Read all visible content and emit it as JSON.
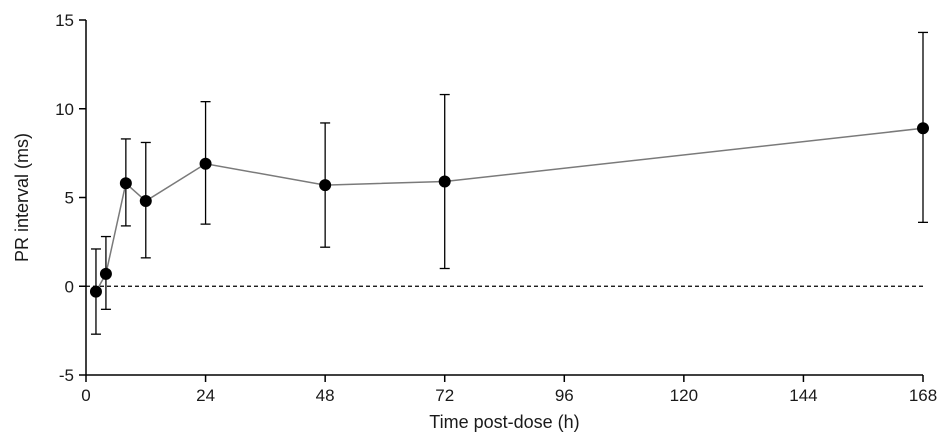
{
  "chart_data": {
    "type": "line",
    "xlabel": "Time post-dose (h)",
    "ylabel": "PR interval (ms)",
    "xlim": [
      0,
      168
    ],
    "ylim": [
      -5,
      15
    ],
    "x_ticks": [
      0,
      24,
      48,
      72,
      96,
      120,
      144,
      168
    ],
    "y_ticks": [
      -5,
      0,
      5,
      10,
      15
    ],
    "reference_line": {
      "y": 0,
      "style": "dashed"
    },
    "series": [
      {
        "x": [
          2,
          4,
          8,
          12,
          24,
          48,
          72,
          168
        ],
        "y": [
          -0.3,
          0.7,
          5.8,
          4.8,
          6.9,
          5.7,
          5.9,
          8.9
        ],
        "error_low": [
          -2.7,
          -1.3,
          3.4,
          1.6,
          3.5,
          2.2,
          1.0,
          3.6
        ],
        "error_high": [
          2.1,
          2.8,
          8.3,
          8.1,
          10.4,
          9.2,
          10.8,
          14.3
        ]
      }
    ],
    "colors": {
      "line": "#7a7a7a",
      "marker": "#000000",
      "axis": "#000000"
    }
  }
}
